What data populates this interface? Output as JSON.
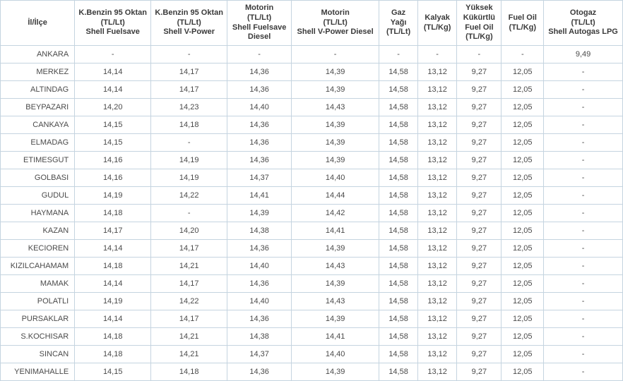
{
  "columns": [
    "İl/İlçe",
    "K.Benzin 95 Oktan\n(TL/Lt)\nShell Fuelsave",
    "K.Benzin 95 Oktan\n(TL/Lt)\nShell V-Power",
    "Motorin\n(TL/Lt)\nShell Fuelsave\nDiesel",
    "Motorin\n(TL/Lt)\nShell V-Power Diesel",
    "Gaz\nYağı\n(TL/Lt)",
    "Kalyak\n(TL/Kg)",
    "Yüksek\nKükürtlü\nFuel Oil\n(TL/Kg)",
    "Fuel Oil\n(TL/Kg)",
    "Otogaz\n(TL/Lt)\nShell Autogas LPG"
  ],
  "rows": [
    [
      "ANKARA",
      "-",
      "-",
      "-",
      "-",
      "-",
      "-",
      "-",
      "-",
      "9,49"
    ],
    [
      "MERKEZ",
      "14,14",
      "14,17",
      "14,36",
      "14,39",
      "14,58",
      "13,12",
      "9,27",
      "12,05",
      "-"
    ],
    [
      "ALTINDAG",
      "14,14",
      "14,17",
      "14,36",
      "14,39",
      "14,58",
      "13,12",
      "9,27",
      "12,05",
      "-"
    ],
    [
      "BEYPAZARI",
      "14,20",
      "14,23",
      "14,40",
      "14,43",
      "14,58",
      "13,12",
      "9,27",
      "12,05",
      "-"
    ],
    [
      "CANKAYA",
      "14,15",
      "14,18",
      "14,36",
      "14,39",
      "14,58",
      "13,12",
      "9,27",
      "12,05",
      "-"
    ],
    [
      "ELMADAG",
      "14,15",
      "-",
      "14,36",
      "14,39",
      "14,58",
      "13,12",
      "9,27",
      "12,05",
      "-"
    ],
    [
      "ETIMESGUT",
      "14,16",
      "14,19",
      "14,36",
      "14,39",
      "14,58",
      "13,12",
      "9,27",
      "12,05",
      "-"
    ],
    [
      "GOLBASI",
      "14,16",
      "14,19",
      "14,37",
      "14,40",
      "14,58",
      "13,12",
      "9,27",
      "12,05",
      "-"
    ],
    [
      "GUDUL",
      "14,19",
      "14,22",
      "14,41",
      "14,44",
      "14,58",
      "13,12",
      "9,27",
      "12,05",
      "-"
    ],
    [
      "HAYMANA",
      "14,18",
      "-",
      "14,39",
      "14,42",
      "14,58",
      "13,12",
      "9,27",
      "12,05",
      "-"
    ],
    [
      "KAZAN",
      "14,17",
      "14,20",
      "14,38",
      "14,41",
      "14,58",
      "13,12",
      "9,27",
      "12,05",
      "-"
    ],
    [
      "KECIOREN",
      "14,14",
      "14,17",
      "14,36",
      "14,39",
      "14,58",
      "13,12",
      "9,27",
      "12,05",
      "-"
    ],
    [
      "KIZILCAHAMAM",
      "14,18",
      "14,21",
      "14,40",
      "14,43",
      "14,58",
      "13,12",
      "9,27",
      "12,05",
      "-"
    ],
    [
      "MAMAK",
      "14,14",
      "14,17",
      "14,36",
      "14,39",
      "14,58",
      "13,12",
      "9,27",
      "12,05",
      "-"
    ],
    [
      "POLATLI",
      "14,19",
      "14,22",
      "14,40",
      "14,43",
      "14,58",
      "13,12",
      "9,27",
      "12,05",
      "-"
    ],
    [
      "PURSAKLAR",
      "14,14",
      "14,17",
      "14,36",
      "14,39",
      "14,58",
      "13,12",
      "9,27",
      "12,05",
      "-"
    ],
    [
      "S.KOCHISAR",
      "14,18",
      "14,21",
      "14,38",
      "14,41",
      "14,58",
      "13,12",
      "9,27",
      "12,05",
      "-"
    ],
    [
      "SINCAN",
      "14,18",
      "14,21",
      "14,37",
      "14,40",
      "14,58",
      "13,12",
      "9,27",
      "12,05",
      "-"
    ],
    [
      "YENIMAHALLE",
      "14,15",
      "14,18",
      "14,36",
      "14,39",
      "14,58",
      "13,12",
      "9,27",
      "12,05",
      "-"
    ]
  ]
}
